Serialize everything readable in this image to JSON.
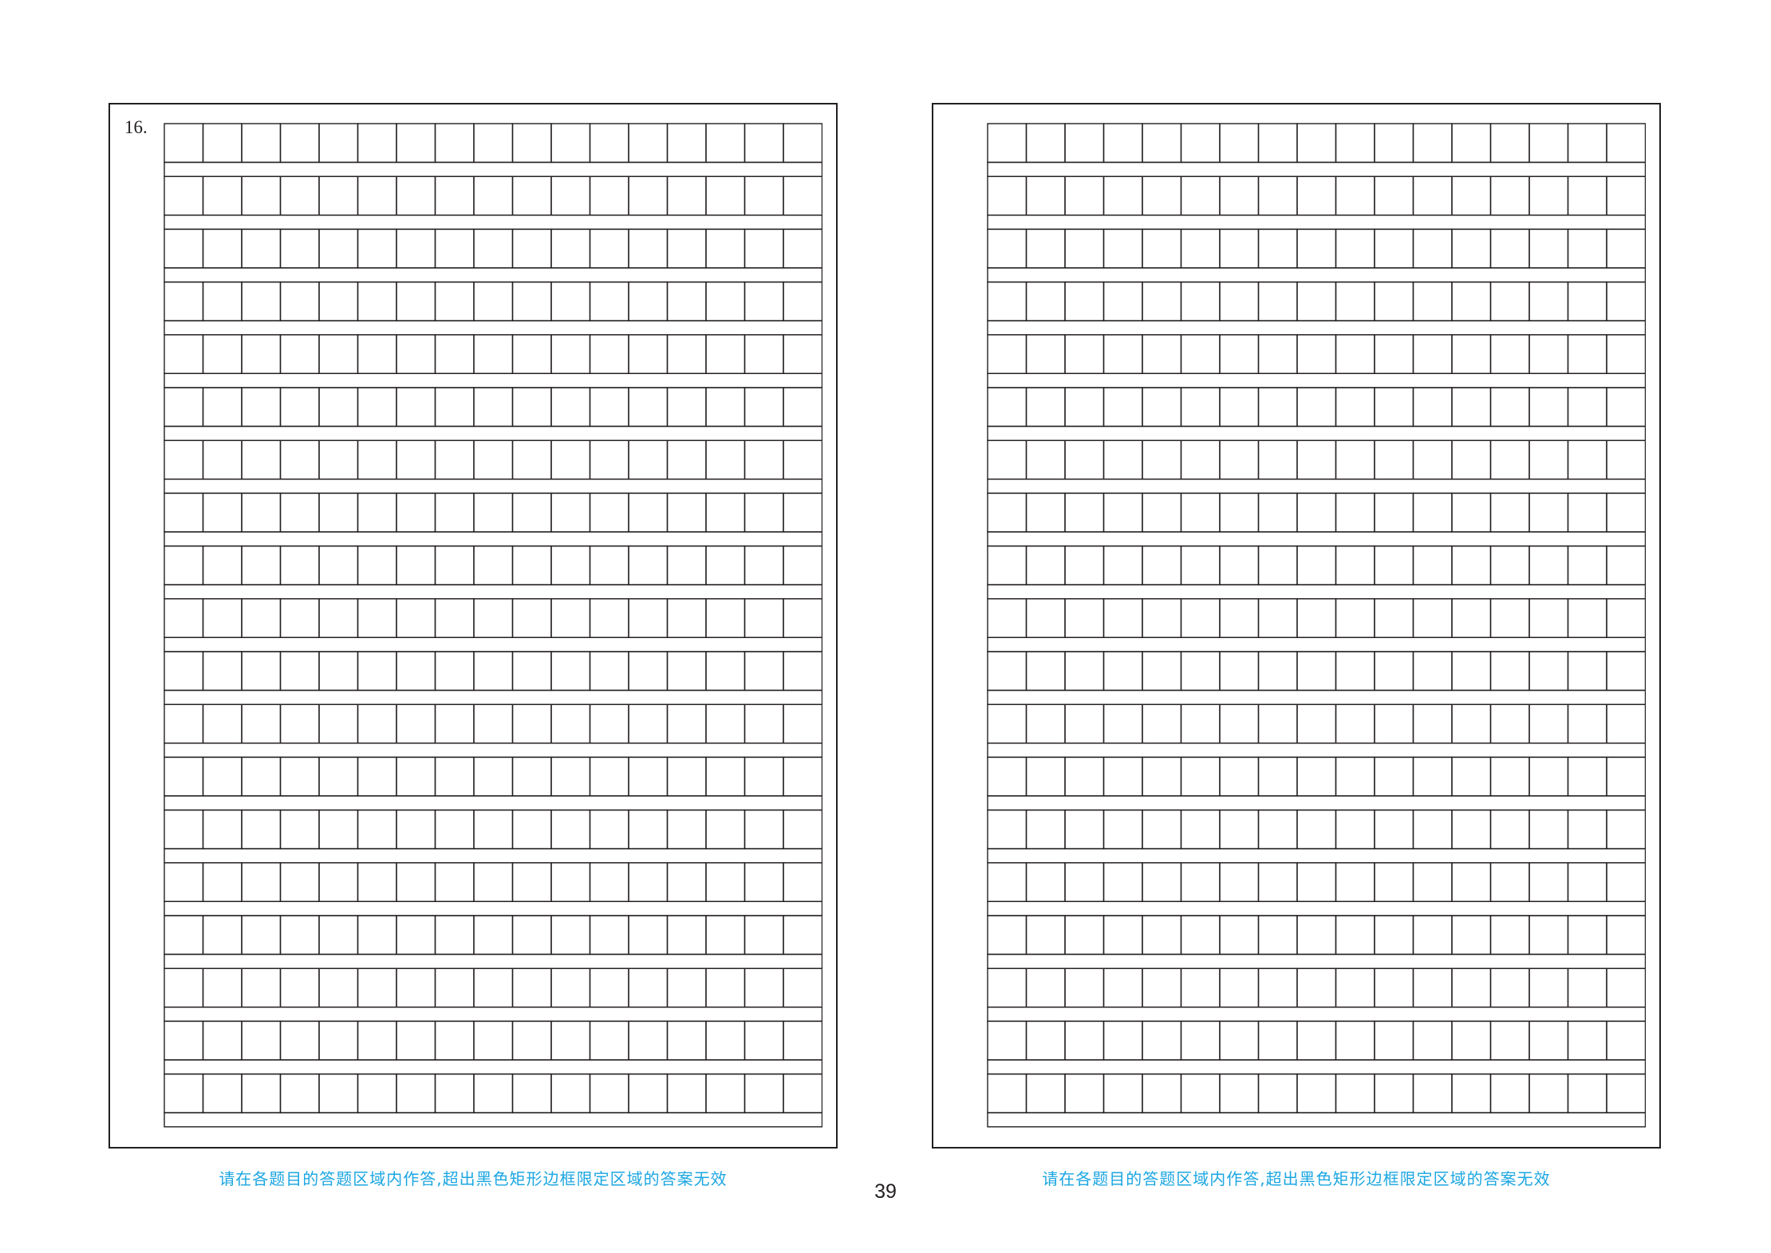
{
  "left_panel": {
    "question_number": "16.",
    "grid": {
      "rows": 19,
      "columns": 17
    }
  },
  "right_panel": {
    "grid": {
      "rows": 19,
      "columns": 17
    }
  },
  "footer": {
    "notice_left": "请在各题目的答题区域内作答,超出黑色矩形边框限定区域的答案无效",
    "notice_right": "请在各题目的答题区域内作答,超出黑色矩形边框限定区域的答案无效",
    "page_number": "39"
  },
  "colors": {
    "line": "#231f20",
    "notice": "#1ba6e1"
  }
}
